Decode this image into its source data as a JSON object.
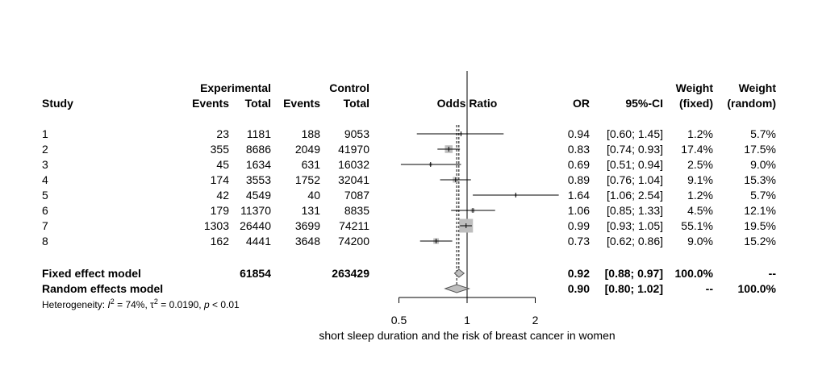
{
  "chart_data": {
    "type": "forest",
    "xlabel": "short sleep duration and the risk of breast cancer in women",
    "x_scale": "log",
    "xlim": [
      0.5,
      2
    ],
    "x_ticks": [
      "0.5",
      "1",
      "2"
    ],
    "reference_line": 1,
    "header": {
      "experimental": "Experimental",
      "control": "Control",
      "study": "Study",
      "events": "Events",
      "total": "Total",
      "odds_ratio": "Odds Ratio",
      "or": "OR",
      "ci": "95%-CI",
      "weight": "Weight",
      "fixed": "(fixed)",
      "random": "(random)"
    },
    "studies": [
      {
        "study": "1",
        "exp_events": "23",
        "exp_total": "1181",
        "ctrl_events": "188",
        "ctrl_total": "9053",
        "or": 0.94,
        "lower": 0.6,
        "upper": 1.45,
        "or_text": "0.94",
        "ci_text": "[0.60; 1.45]",
        "w_fixed": "1.2%",
        "w_random": "5.7%",
        "w_fixed_value": 1.2
      },
      {
        "study": "2",
        "exp_events": "355",
        "exp_total": "8686",
        "ctrl_events": "2049",
        "ctrl_total": "41970",
        "or": 0.83,
        "lower": 0.74,
        "upper": 0.93,
        "or_text": "0.83",
        "ci_text": "[0.74; 0.93]",
        "w_fixed": "17.4%",
        "w_random": "17.5%",
        "w_fixed_value": 17.4
      },
      {
        "study": "3",
        "exp_events": "45",
        "exp_total": "1634",
        "ctrl_events": "631",
        "ctrl_total": "16032",
        "or": 0.69,
        "lower": 0.51,
        "upper": 0.94,
        "or_text": "0.69",
        "ci_text": "[0.51; 0.94]",
        "w_fixed": "2.5%",
        "w_random": "9.0%",
        "w_fixed_value": 2.5
      },
      {
        "study": "4",
        "exp_events": "174",
        "exp_total": "3553",
        "ctrl_events": "1752",
        "ctrl_total": "32041",
        "or": 0.89,
        "lower": 0.76,
        "upper": 1.04,
        "or_text": "0.89",
        "ci_text": "[0.76; 1.04]",
        "w_fixed": "9.1%",
        "w_random": "15.3%",
        "w_fixed_value": 9.1
      },
      {
        "study": "5",
        "exp_events": "42",
        "exp_total": "4549",
        "ctrl_events": "40",
        "ctrl_total": "7087",
        "or": 1.64,
        "lower": 1.06,
        "upper": 2.54,
        "or_text": "1.64",
        "ci_text": "[1.06; 2.54]",
        "w_fixed": "1.2%",
        "w_random": "5.7%",
        "w_fixed_value": 1.2
      },
      {
        "study": "6",
        "exp_events": "179",
        "exp_total": "11370",
        "ctrl_events": "131",
        "ctrl_total": "8835",
        "or": 1.06,
        "lower": 0.85,
        "upper": 1.33,
        "or_text": "1.06",
        "ci_text": "[0.85; 1.33]",
        "w_fixed": "4.5%",
        "w_random": "12.1%",
        "w_fixed_value": 4.5
      },
      {
        "study": "7",
        "exp_events": "1303",
        "exp_total": "26440",
        "ctrl_events": "3699",
        "ctrl_total": "74211",
        "or": 0.99,
        "lower": 0.93,
        "upper": 1.05,
        "or_text": "0.99",
        "ci_text": "[0.93; 1.05]",
        "w_fixed": "55.1%",
        "w_random": "19.5%",
        "w_fixed_value": 55.1
      },
      {
        "study": "8",
        "exp_events": "162",
        "exp_total": "4441",
        "ctrl_events": "3648",
        "ctrl_total": "74200",
        "or": 0.73,
        "lower": 0.62,
        "upper": 0.86,
        "or_text": "0.73",
        "ci_text": "[0.62; 0.86]",
        "w_fixed": "9.0%",
        "w_random": "15.2%",
        "w_fixed_value": 9.0
      }
    ],
    "fixed": {
      "label": "Fixed effect model",
      "exp_total": "61854",
      "ctrl_total": "263429",
      "or": 0.92,
      "lower": 0.88,
      "upper": 0.97,
      "or_text": "0.92",
      "ci_text": "[0.88; 0.97]",
      "w_fixed": "100.0%",
      "w_random": "--"
    },
    "random": {
      "label": "Random effects model",
      "or": 0.9,
      "lower": 0.8,
      "upper": 1.02,
      "or_text": "0.90",
      "ci_text": "[0.80; 1.02]",
      "w_fixed": "--",
      "w_random": "100.0%"
    },
    "heterogeneity": {
      "label": "Heterogeneity:",
      "I2": "74%",
      "tau2": "0.0190",
      "p": "< 0.01"
    },
    "colors": {
      "square": "#bebebe",
      "diamond": "#bebebe",
      "line": "#000000"
    }
  }
}
